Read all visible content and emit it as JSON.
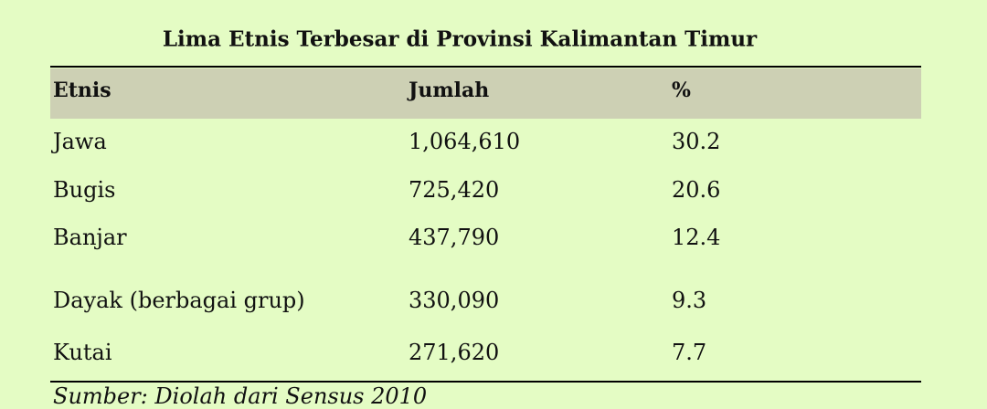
{
  "title": "Lima Etnis Terbesar di Provinsi Kalimantan Timur",
  "table": {
    "header": [
      "Etnis",
      "Jumlah",
      "%"
    ],
    "rows": [
      [
        "Jawa",
        "1,064,610",
        "30.2"
      ],
      [
        "Bugis",
        "725,420",
        "20.6"
      ],
      [
        "Banjar",
        "437,790",
        "12.4"
      ],
      [
        "Dayak (berbagai grup)",
        "330,090",
        "9.3"
      ],
      [
        "Kutai",
        "271,620",
        "7.7"
      ]
    ]
  },
  "source": "Sumber: Diolah dari Sensus 2010"
}
